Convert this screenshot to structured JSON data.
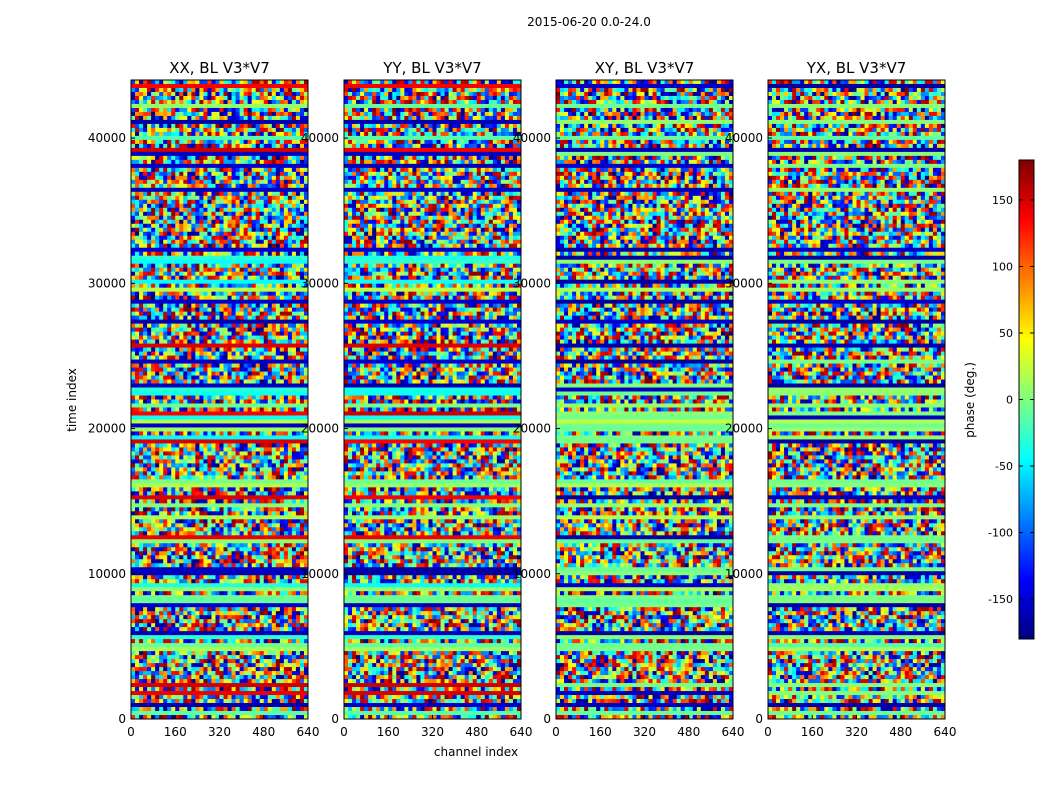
{
  "suptitle": "2015-06-20 0.0-24.0",
  "chart_data": [
    {
      "type": "heatmap",
      "title": "XX, BL V3*V7",
      "xlabel": "",
      "ylabel": "time index",
      "xlim": [
        0,
        640
      ],
      "ylim": [
        0,
        44000
      ],
      "x_ticks": [
        0,
        160,
        320,
        480,
        640
      ],
      "y_ticks": [
        0,
        10000,
        20000,
        30000,
        40000
      ],
      "value_range": [
        -180,
        180
      ],
      "colormap": "jet",
      "value_label": "phase (deg.)"
    },
    {
      "type": "heatmap",
      "title": "YY, BL V3*V7",
      "xlabel": "channel index",
      "ylabel": "",
      "xlim": [
        0,
        640
      ],
      "ylim": [
        0,
        44000
      ],
      "x_ticks": [
        0,
        160,
        320,
        480,
        640
      ],
      "y_ticks": [
        0,
        10000,
        20000,
        30000,
        40000
      ],
      "value_range": [
        -180,
        180
      ],
      "colormap": "jet",
      "value_label": "phase (deg.)"
    },
    {
      "type": "heatmap",
      "title": "XY, BL V3*V7",
      "xlabel": "",
      "ylabel": "",
      "xlim": [
        0,
        640
      ],
      "ylim": [
        0,
        44000
      ],
      "x_ticks": [
        0,
        160,
        320,
        480,
        640
      ],
      "y_ticks": [
        0,
        10000,
        20000,
        30000,
        40000
      ],
      "value_range": [
        -180,
        180
      ],
      "colormap": "jet",
      "value_label": "phase (deg.)"
    },
    {
      "type": "heatmap",
      "title": "YX, BL V3*V7",
      "xlabel": "",
      "ylabel": "",
      "xlim": [
        0,
        640
      ],
      "ylim": [
        0,
        44000
      ],
      "x_ticks": [
        0,
        160,
        320,
        480,
        640
      ],
      "y_ticks": [
        0,
        10000,
        20000,
        30000,
        40000
      ],
      "value_range": [
        -180,
        180
      ],
      "colormap": "jet",
      "value_label": "phase (deg.)"
    }
  ],
  "colorbar": {
    "label": "phase (deg.)",
    "ticks": [
      150,
      100,
      50,
      0,
      -50,
      -100,
      -150
    ],
    "range": [
      -180,
      180
    ],
    "colormap": "jet"
  }
}
